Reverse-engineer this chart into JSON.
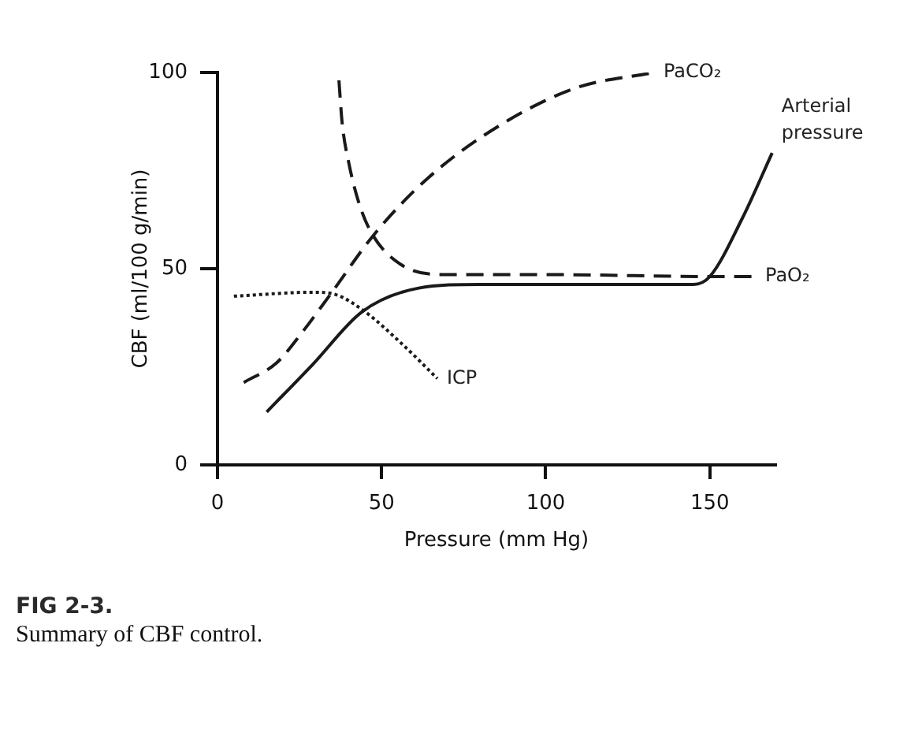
{
  "chart_data": {
    "type": "line",
    "xlabel": "Pressure (mm Hg)",
    "ylabel": "CBF (ml/100 g/min)",
    "xlim": [
      0,
      170
    ],
    "xticks": [
      0,
      50,
      100,
      150
    ],
    "ylim": [
      0,
      100
    ],
    "yticks": [
      0,
      50,
      100
    ],
    "grid": false,
    "legend": false,
    "marker": "none",
    "series": [
      {
        "name": "Arterial pressure",
        "color": "#1a1a1a",
        "line_style": "solid",
        "x": [
          15,
          29,
          44,
          61,
          80,
          110,
          145,
          150,
          160,
          169
        ],
        "values": [
          13.5,
          25.6,
          39,
          45,
          46,
          46,
          46,
          48,
          63,
          79.5
        ]
      },
      {
        "name": "PaCO₂",
        "color": "#1a1a1a",
        "line_style": "dashed",
        "x": [
          8,
          18,
          26,
          34,
          48,
          64,
          85,
          109,
          133
        ],
        "values": [
          21,
          26,
          34,
          43,
          59,
          73,
          86,
          96,
          100
        ]
      },
      {
        "name": "PaO₂",
        "color": "#1a1a1a",
        "line_style": "dashed",
        "x": [
          37,
          38,
          40,
          43,
          47,
          56,
          69,
          100,
          150,
          164
        ],
        "values": [
          98,
          87,
          77,
          67,
          59,
          51,
          48.5,
          48.5,
          48,
          48
        ]
      },
      {
        "name": "ICP",
        "color": "#1a1a1a",
        "line_style": "dotted",
        "x": [
          5,
          29,
          36,
          45,
          56,
          67
        ],
        "values": [
          43,
          44,
          43.4,
          39,
          31,
          22
        ]
      }
    ],
    "annotations": [
      "FIG 2-3.",
      "Summary of CBF control."
    ]
  }
}
